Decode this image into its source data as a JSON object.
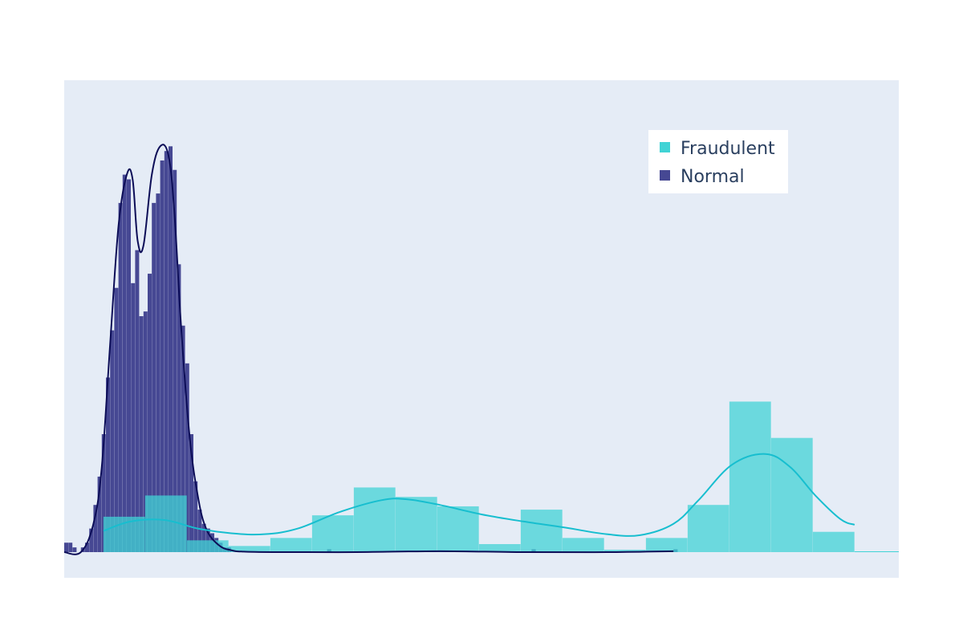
{
  "chart_data": {
    "type": "histogram",
    "title": "",
    "xlabel": "",
    "ylabel": "",
    "xlim": [
      0,
      1
    ],
    "ylim": [
      0,
      1
    ],
    "grid": false,
    "background_color": "#e5ecf6",
    "legend": {
      "placement": "top-right",
      "entries": [
        {
          "label": "Fraudulent",
          "color": "#41d3d5"
        },
        {
          "label": "Normal",
          "color": "#464893"
        }
      ]
    },
    "series": [
      {
        "name": "Normal",
        "color": "#464893",
        "curve_color": "#0c0d57",
        "bin_edges": [
          0.0,
          0.005,
          0.01,
          0.015,
          0.02,
          0.025,
          0.03,
          0.035,
          0.04,
          0.045,
          0.05,
          0.055,
          0.06,
          0.065,
          0.07,
          0.075,
          0.08,
          0.085,
          0.09,
          0.095,
          0.1,
          0.105,
          0.11,
          0.115,
          0.12,
          0.125,
          0.13,
          0.135,
          0.14,
          0.145,
          0.15,
          0.155,
          0.16,
          0.165,
          0.17,
          0.175,
          0.18,
          0.185,
          0.19,
          0.195,
          0.2,
          0.205,
          0.21,
          0.215
        ],
        "counts": [
          0.02,
          0.02,
          0.01,
          0.0,
          0.01,
          0.02,
          0.05,
          0.1,
          0.16,
          0.25,
          0.37,
          0.47,
          0.56,
          0.74,
          0.8,
          0.79,
          0.57,
          0.64,
          0.5,
          0.51,
          0.59,
          0.74,
          0.76,
          0.83,
          0.85,
          0.86,
          0.81,
          0.61,
          0.48,
          0.4,
          0.25,
          0.15,
          0.09,
          0.06,
          0.05,
          0.04,
          0.03,
          0.02,
          0.01,
          0.01,
          0.0,
          0.0,
          0.0
        ],
        "sparse_bins": [
          {
            "x0": 0.315,
            "x1": 0.32,
            "count": 0.006
          },
          {
            "x0": 0.56,
            "x1": 0.565,
            "count": 0.006
          },
          {
            "x0": 0.73,
            "x1": 0.735,
            "count": 0.006
          }
        ],
        "curve_x": [
          0.0,
          0.02,
          0.035,
          0.045,
          0.055,
          0.065,
          0.075,
          0.082,
          0.088,
          0.095,
          0.105,
          0.115,
          0.125,
          0.132,
          0.14,
          0.15,
          0.16,
          0.17,
          0.185,
          0.2,
          0.215,
          0.25,
          0.35,
          0.45,
          0.55,
          0.65,
          0.73
        ],
        "curve_y": [
          0.0,
          0.0,
          0.06,
          0.18,
          0.44,
          0.69,
          0.8,
          0.79,
          0.66,
          0.65,
          0.8,
          0.86,
          0.84,
          0.72,
          0.48,
          0.25,
          0.12,
          0.05,
          0.015,
          0.004,
          0.001,
          0.0,
          0.0,
          0.002,
          0.0,
          0.0,
          0.002
        ]
      },
      {
        "name": "Fraudulent",
        "color": "#41d3d5",
        "curve_color": "#17becf",
        "bin_edges": [
          0.047,
          0.097,
          0.147,
          0.197,
          0.247,
          0.297,
          0.347,
          0.397,
          0.447,
          0.497,
          0.547,
          0.597,
          0.647,
          0.697,
          0.747,
          0.797,
          0.847,
          0.897,
          0.947
        ],
        "counts": [
          0.075,
          0.12,
          0.025,
          0.013,
          0.03,
          0.078,
          0.137,
          0.117,
          0.097,
          0.017,
          0.09,
          0.03,
          0.005,
          0.03,
          0.1,
          0.319,
          0.242,
          0.043
        ],
        "tail_to": 1.0,
        "curve_x": [
          0.047,
          0.08,
          0.12,
          0.16,
          0.2,
          0.24,
          0.28,
          0.33,
          0.38,
          0.41,
          0.45,
          0.5,
          0.55,
          0.6,
          0.65,
          0.69,
          0.73,
          0.76,
          0.8,
          0.84,
          0.87,
          0.9,
          0.93,
          0.947
        ],
        "curve_y": [
          0.045,
          0.065,
          0.068,
          0.05,
          0.04,
          0.038,
          0.05,
          0.085,
          0.11,
          0.112,
          0.1,
          0.08,
          0.065,
          0.052,
          0.038,
          0.036,
          0.06,
          0.11,
          0.185,
          0.208,
          0.18,
          0.12,
          0.07,
          0.058
        ]
      }
    ]
  }
}
